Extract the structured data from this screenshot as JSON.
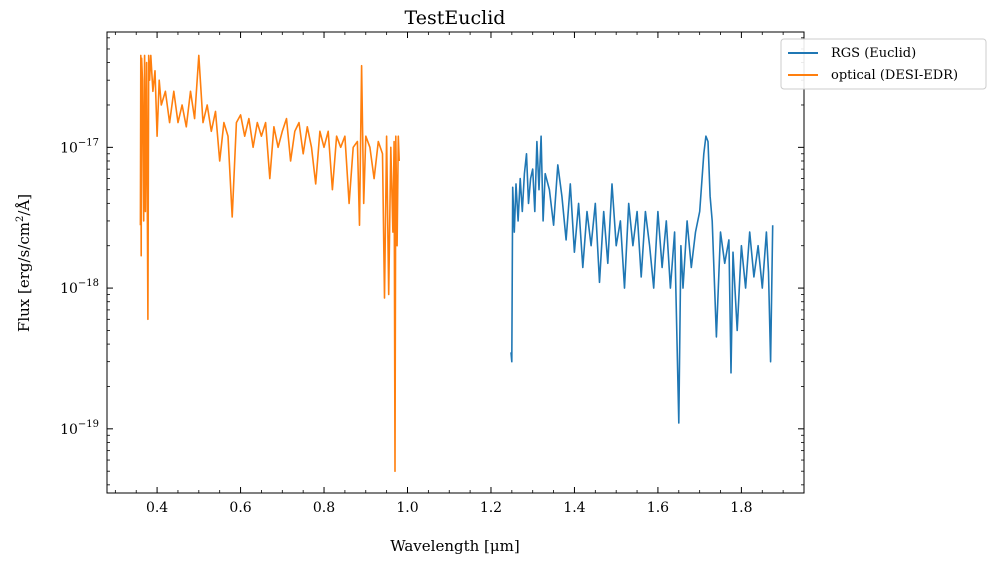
{
  "chart_data": {
    "type": "line",
    "title": "TestEuclid",
    "xlabel": "Wavelength [μm]",
    "ylabel_parts": {
      "prefix": "Flux [erg/s/cm",
      "sup": "2",
      "suffix": "/Å]"
    },
    "xlim": [
      0.28,
      1.95
    ],
    "ylim": [
      3.5e-20,
      6.6e-17
    ],
    "yscale": "log",
    "legend_position": "upper-right",
    "x_ticks": [
      "0.4",
      "0.6",
      "0.8",
      "1.0",
      "1.2",
      "1.4",
      "1.6",
      "1.8"
    ],
    "y_ticks": [
      {
        "base": "10",
        "exp": "−17"
      },
      {
        "base": "10",
        "exp": "−18"
      },
      {
        "base": "10",
        "exp": "−19"
      }
    ],
    "series": [
      {
        "name": "RGS (Euclid)",
        "color": "#1f77b4",
        "x": [
          1.248,
          1.25,
          1.252,
          1.256,
          1.26,
          1.265,
          1.27,
          1.275,
          1.28,
          1.285,
          1.29,
          1.295,
          1.3,
          1.305,
          1.31,
          1.315,
          1.32,
          1.325,
          1.33,
          1.34,
          1.35,
          1.36,
          1.37,
          1.38,
          1.39,
          1.4,
          1.41,
          1.42,
          1.43,
          1.44,
          1.45,
          1.46,
          1.47,
          1.48,
          1.49,
          1.5,
          1.51,
          1.52,
          1.53,
          1.54,
          1.55,
          1.56,
          1.57,
          1.58,
          1.59,
          1.6,
          1.61,
          1.62,
          1.63,
          1.64,
          1.65,
          1.655,
          1.66,
          1.67,
          1.68,
          1.69,
          1.7,
          1.71,
          1.715,
          1.72,
          1.725,
          1.73,
          1.74,
          1.75,
          1.76,
          1.77,
          1.775,
          1.78,
          1.79,
          1.8,
          1.81,
          1.82,
          1.83,
          1.84,
          1.85,
          1.86,
          1.865,
          1.87,
          1.875
        ],
        "y": [
          3.5e-19,
          3e-19,
          5.2e-18,
          2.5e-18,
          5.5e-18,
          3e-18,
          6e-18,
          3.5e-18,
          6.5e-18,
          9e-18,
          4e-18,
          6e-18,
          7e-18,
          3.5e-18,
          1.1e-17,
          5e-18,
          1.2e-17,
          3e-18,
          6.5e-18,
          5e-18,
          2.8e-18,
          7.5e-18,
          4.5e-18,
          2.2e-18,
          5.5e-18,
          1.8e-18,
          4e-18,
          1.4e-18,
          3.5e-18,
          2e-18,
          4e-18,
          1.1e-18,
          3.5e-18,
          1.5e-18,
          5.5e-18,
          2e-18,
          3e-18,
          1e-18,
          4e-18,
          2e-18,
          3.5e-18,
          1.2e-18,
          3.5e-18,
          2e-18,
          1e-18,
          3.5e-18,
          1.4e-18,
          3e-18,
          1e-18,
          2.5e-18,
          1.1e-19,
          2e-18,
          1e-18,
          3e-18,
          1.4e-18,
          2.5e-18,
          3.5e-18,
          9e-18,
          1.2e-17,
          1.1e-17,
          4.5e-18,
          3e-18,
          4.5e-19,
          2.5e-18,
          1.5e-18,
          2.2e-18,
          2.5e-19,
          1.8e-18,
          5e-19,
          2e-18,
          1e-18,
          2.5e-18,
          1.2e-18,
          2e-18,
          1e-18,
          2.5e-18,
          1.3e-18,
          3e-19,
          2.8e-18
        ]
      },
      {
        "name": "optical (DESI-EDR)",
        "color": "#ff7f0e",
        "x": [
          0.36,
          0.361,
          0.362,
          0.363,
          0.365,
          0.368,
          0.37,
          0.372,
          0.375,
          0.378,
          0.38,
          0.382,
          0.385,
          0.39,
          0.395,
          0.4,
          0.405,
          0.41,
          0.42,
          0.43,
          0.44,
          0.45,
          0.46,
          0.47,
          0.48,
          0.49,
          0.5,
          0.51,
          0.52,
          0.53,
          0.54,
          0.55,
          0.56,
          0.57,
          0.58,
          0.59,
          0.6,
          0.61,
          0.62,
          0.63,
          0.64,
          0.65,
          0.66,
          0.67,
          0.68,
          0.69,
          0.7,
          0.71,
          0.72,
          0.73,
          0.74,
          0.75,
          0.76,
          0.77,
          0.78,
          0.79,
          0.8,
          0.81,
          0.82,
          0.83,
          0.84,
          0.85,
          0.86,
          0.87,
          0.88,
          0.885,
          0.89,
          0.895,
          0.9,
          0.91,
          0.92,
          0.93,
          0.94,
          0.945,
          0.95,
          0.955,
          0.96,
          0.965,
          0.968,
          0.97,
          0.972,
          0.975,
          0.978,
          0.98
        ],
        "y": [
          2.8e-18,
          4.5e-17,
          1.7e-18,
          4.3e-17,
          3e-17,
          3e-18,
          4.5e-17,
          3.5e-18,
          4e-17,
          6e-19,
          4.5e-17,
          3e-17,
          4.5e-17,
          2.5e-17,
          3.5e-17,
          1.2e-17,
          3e-17,
          2e-17,
          2.5e-17,
          1.5e-17,
          2.5e-17,
          1.5e-17,
          2e-17,
          1.4e-17,
          2.5e-17,
          1.6e-17,
          4.5e-17,
          1.5e-17,
          2e-17,
          1.3e-17,
          1.8e-17,
          8e-18,
          1.5e-17,
          1.2e-17,
          3.2e-18,
          1.5e-17,
          1.7e-17,
          1.2e-17,
          1.6e-17,
          1e-17,
          1.5e-17,
          1.2e-17,
          1.5e-17,
          6e-18,
          1.4e-17,
          1e-17,
          1.3e-17,
          1.6e-17,
          8e-18,
          1.3e-17,
          1.5e-17,
          9e-18,
          1.4e-17,
          1e-17,
          5.5e-18,
          1.3e-17,
          1e-17,
          1.3e-17,
          5e-18,
          1.2e-17,
          1e-17,
          1.2e-17,
          4e-18,
          1e-17,
          1.1e-17,
          2.8e-18,
          3.8e-17,
          4e-18,
          1.2e-17,
          1e-17,
          6e-18,
          1.1e-17,
          9e-18,
          8.5e-19,
          1.2e-17,
          9e-19,
          1e-17,
          2.5e-18,
          1.1e-17,
          5e-20,
          1.2e-17,
          2e-18,
          1.2e-17,
          8e-18
        ]
      }
    ]
  }
}
